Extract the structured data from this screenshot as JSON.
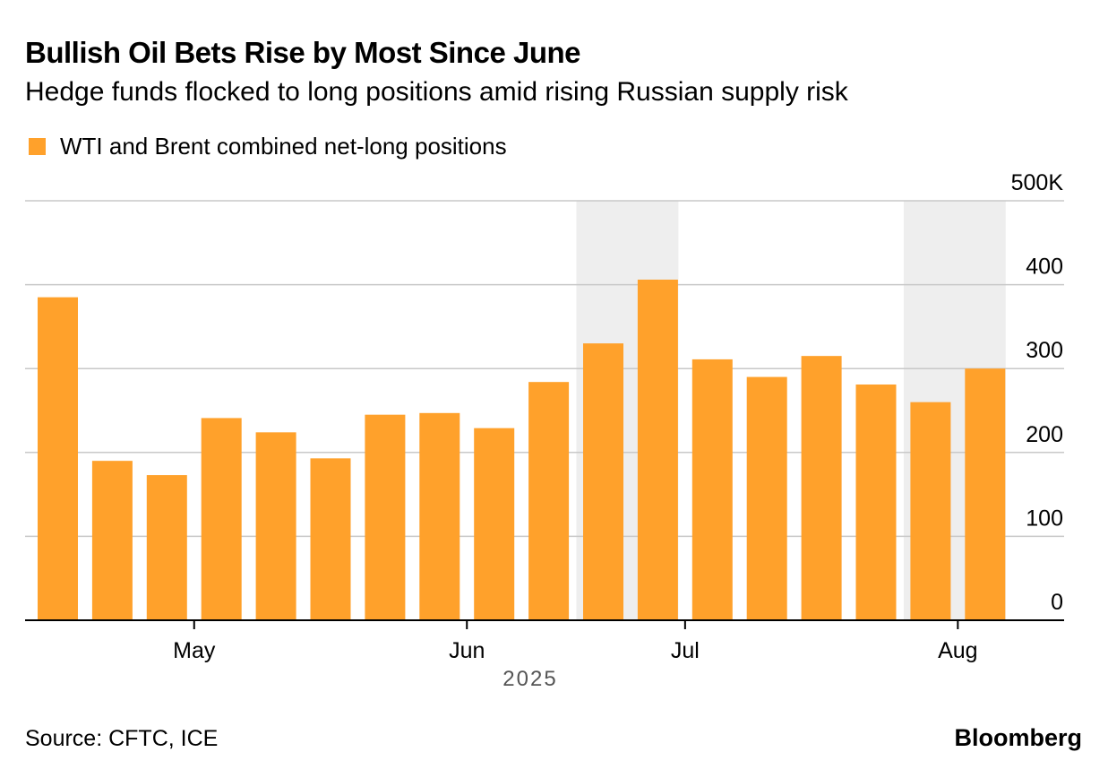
{
  "title": "Bullish Oil Bets Rise by Most Since June",
  "subtitle": "Hedge funds flocked to long positions amid rising Russian supply risk",
  "source": "Source: CFTC, ICE",
  "brand": "Bloomberg",
  "colors": {
    "bar": "#ffa12b",
    "grid": "#c8c8c8",
    "highlight": "#eeeeee",
    "axis": "#000000",
    "year_text": "#555555"
  },
  "chart_data": {
    "type": "bar",
    "series": [
      {
        "name": "WTI and Brent combined net-long positions",
        "values": [
          385,
          190,
          173,
          241,
          224,
          193,
          245,
          247,
          229,
          284,
          330,
          406,
          311,
          290,
          315,
          281,
          260,
          300
        ]
      }
    ],
    "highlight_bar_ranges": [
      [
        10,
        11
      ],
      [
        16,
        17
      ]
    ],
    "ylim": [
      0,
      500
    ],
    "yticks": [
      {
        "value": 0,
        "label": "0"
      },
      {
        "value": 100,
        "label": "100"
      },
      {
        "value": 200,
        "label": "200"
      },
      {
        "value": 300,
        "label": "300"
      },
      {
        "value": 400,
        "label": "400"
      },
      {
        "value": 500,
        "label": "500K"
      }
    ],
    "xticks": [
      {
        "after_bar": 2.5,
        "label": "May"
      },
      {
        "after_bar": 7.5,
        "label": "Jun"
      },
      {
        "after_bar": 11.5,
        "label": "Jul"
      },
      {
        "after_bar": 16.5,
        "label": "Aug"
      }
    ],
    "year_label": "2025",
    "xlabel": "",
    "ylabel": "",
    "grid": true,
    "legend": "top-left"
  }
}
